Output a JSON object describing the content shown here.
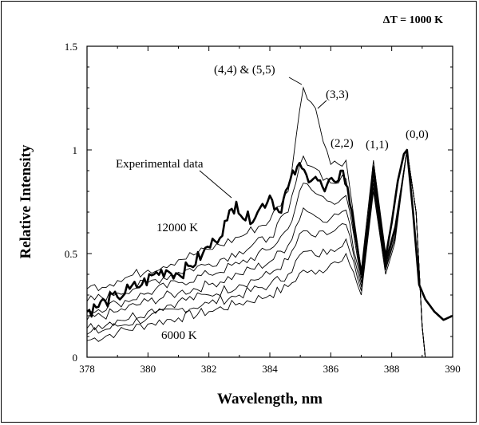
{
  "chart_data": {
    "type": "line",
    "title": "",
    "top_right_note": "ΔT = 1000 K",
    "xlabel": "Wavelength, nm",
    "ylabel": "Relative Intensity",
    "xlim": [
      378,
      390
    ],
    "ylim": [
      0,
      1.5
    ],
    "xticks": [
      "378",
      "380",
      "382",
      "384",
      "386",
      "388",
      "390"
    ],
    "yticks": [
      "0",
      "0.5",
      "1",
      "1.5"
    ],
    "grid": false,
    "annotations": {
      "experimental": "Experimental data",
      "t_high": "12000 K",
      "t_low": "6000 K",
      "band_44_55": "(4,4) & (5,5)",
      "band_33": "(3,3)",
      "band_22": "(2,2)",
      "band_11": "(1,1)",
      "band_00": "(0,0)"
    },
    "simulated_series": {
      "temperatures_K": [
        6000,
        7000,
        8000,
        9000,
        10000,
        11000,
        12000
      ],
      "x": [
        378,
        379,
        380,
        381,
        382,
        383,
        384,
        384.6,
        385.1,
        385.5,
        386.0,
        386.5,
        387.0,
        387.4,
        387.8,
        388.1,
        388.5,
        388.8,
        389.0,
        389.1
      ],
      "values": [
        [
          0.08,
          0.12,
          0.16,
          0.19,
          0.22,
          0.26,
          0.3,
          0.34,
          0.42,
          0.4,
          0.45,
          0.5,
          0.3,
          0.8,
          0.4,
          0.55,
          1.0,
          0.7,
          0.15,
          0.0
        ],
        [
          0.11,
          0.15,
          0.19,
          0.23,
          0.26,
          0.3,
          0.35,
          0.4,
          0.51,
          0.49,
          0.52,
          0.57,
          0.32,
          0.82,
          0.42,
          0.57,
          1.0,
          0.7,
          0.15,
          0.0
        ],
        [
          0.14,
          0.18,
          0.22,
          0.27,
          0.3,
          0.35,
          0.4,
          0.47,
          0.61,
          0.58,
          0.6,
          0.64,
          0.34,
          0.84,
          0.43,
          0.58,
          1.0,
          0.7,
          0.15,
          0.0
        ],
        [
          0.18,
          0.22,
          0.27,
          0.31,
          0.35,
          0.4,
          0.46,
          0.54,
          0.72,
          0.68,
          0.67,
          0.71,
          0.36,
          0.86,
          0.44,
          0.6,
          1.0,
          0.7,
          0.15,
          0.0
        ],
        [
          0.22,
          0.26,
          0.31,
          0.36,
          0.4,
          0.45,
          0.52,
          0.62,
          0.84,
          0.79,
          0.75,
          0.78,
          0.38,
          0.88,
          0.45,
          0.61,
          1.0,
          0.7,
          0.15,
          0.0
        ],
        [
          0.27,
          0.31,
          0.36,
          0.41,
          0.45,
          0.51,
          0.58,
          0.7,
          0.97,
          0.91,
          0.84,
          0.86,
          0.4,
          0.91,
          0.46,
          0.62,
          1.0,
          0.7,
          0.15,
          0.0
        ],
        [
          0.33,
          0.37,
          0.42,
          0.47,
          0.52,
          0.58,
          0.66,
          0.8,
          1.3,
          1.2,
          0.93,
          0.95,
          0.42,
          0.95,
          0.47,
          0.63,
          1.0,
          0.7,
          0.15,
          0.0
        ]
      ]
    },
    "experimental_series": {
      "name": "Experimental data",
      "x": [
        378.0,
        378.3,
        378.6,
        379.0,
        379.4,
        379.8,
        380.2,
        380.6,
        381.0,
        381.4,
        381.8,
        382.2,
        382.6,
        382.9,
        383.2,
        383.6,
        384.0,
        384.3,
        384.6,
        384.9,
        385.2,
        385.5,
        385.8,
        386.1,
        386.4,
        386.7,
        387.0,
        387.2,
        387.4,
        387.6,
        387.8,
        388.0,
        388.2,
        388.4,
        388.5,
        388.7,
        388.9,
        389.1,
        389.4,
        389.7,
        390.0
      ],
      "values": [
        0.22,
        0.24,
        0.27,
        0.29,
        0.33,
        0.35,
        0.4,
        0.42,
        0.4,
        0.44,
        0.5,
        0.56,
        0.66,
        0.75,
        0.66,
        0.7,
        0.78,
        0.7,
        0.82,
        0.92,
        0.88,
        0.87,
        0.8,
        0.85,
        0.9,
        0.7,
        0.4,
        0.6,
        0.92,
        0.7,
        0.48,
        0.65,
        0.85,
        0.98,
        1.0,
        0.7,
        0.35,
        0.28,
        0.22,
        0.18,
        0.2
      ]
    }
  }
}
